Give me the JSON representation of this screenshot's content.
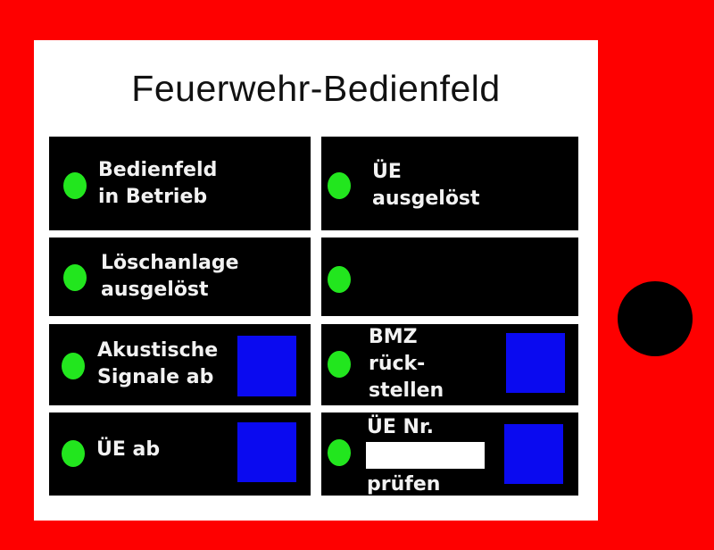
{
  "panel": {
    "title": "Feuerwehr-Bedienfeld",
    "colors": {
      "housing": "#fe0000",
      "led": "#22e61e",
      "button": "#0a0af0",
      "cell": "#000000"
    },
    "cells": [
      {
        "line1": "Bedienfeld",
        "line2": "in Betrieb"
      },
      {
        "line1": "ÜE",
        "line2": "ausgelöst"
      },
      {
        "line1": "Löschanlage",
        "line2": "ausgelöst"
      },
      {
        "line1": "",
        "line2": ""
      },
      {
        "line1": "Akustische",
        "line2": "Signale ab"
      },
      {
        "line1": "BMZ",
        "line2": "rück-",
        "line3": "stellen"
      },
      {
        "line1": "ÜE ab"
      },
      {
        "line1": "ÜE Nr.",
        "line3": "prüfen"
      }
    ]
  }
}
